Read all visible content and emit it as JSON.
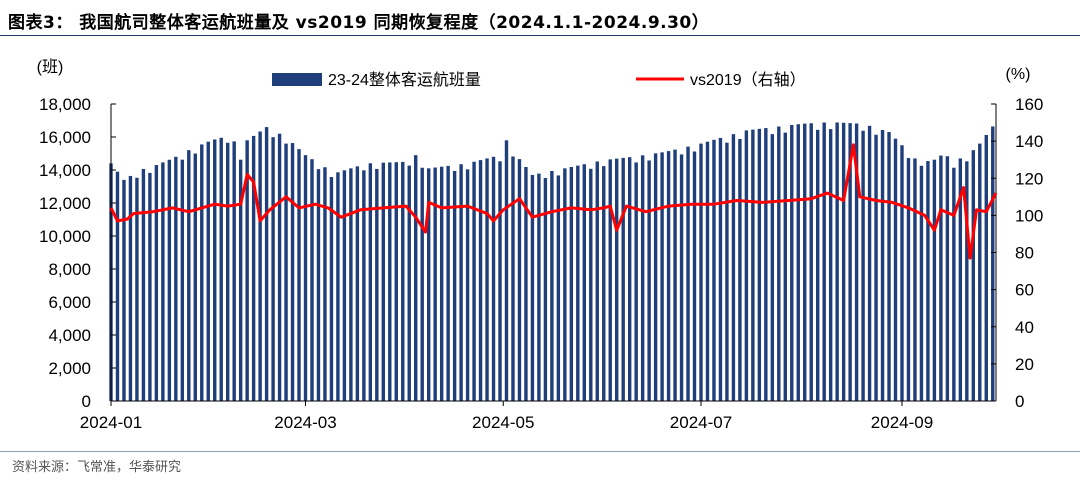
{
  "figure": {
    "title": "图表3：  我国航司整体客运航班量及 vs2019 同期恢复程度（2024.1.1-2024.9.30）",
    "source": "资料来源：飞常准，华泰研究"
  },
  "colors": {
    "bar": "#1f3e7a",
    "line": "#ff0000",
    "rule": "#1a3a6b"
  },
  "chart_data": {
    "type": "bar+line",
    "x_start": "2024-01-01",
    "x_end": "2024-09-30",
    "x_tick_labels": [
      "2024-01",
      "2024-03",
      "2024-05",
      "2024-07",
      "2024-09"
    ],
    "x_tick_dates": [
      "2024-01-01",
      "2024-03-01",
      "2024-05-01",
      "2024-07-01",
      "2024-09-01"
    ],
    "y_left": {
      "unit_label": "(班)",
      "range": [
        0,
        18000
      ],
      "ticks": [
        "0",
        "2,000",
        "4,000",
        "6,000",
        "8,000",
        "10,000",
        "12,000",
        "14,000",
        "16,000",
        "18,000"
      ]
    },
    "y_right": {
      "unit_label": "(%)",
      "range": [
        0,
        160
      ],
      "ticks": [
        "0",
        "20",
        "40",
        "60",
        "80",
        "100",
        "120",
        "140",
        "160"
      ]
    },
    "legend": {
      "placement": "top",
      "entries": [
        "23-24整体客运航班量",
        "vs2019（右轴）"
      ]
    },
    "series": [
      {
        "name": "23-24整体客运航班量",
        "kind": "bar",
        "axis": "left",
        "anchors": [
          [
            "2024-01-01",
            14400
          ],
          [
            "2024-01-05",
            13400
          ],
          [
            "2024-01-10",
            14000
          ],
          [
            "2024-01-15",
            14300
          ],
          [
            "2024-01-20",
            14700
          ],
          [
            "2024-01-26",
            15300
          ],
          [
            "2024-02-01",
            15800
          ],
          [
            "2024-02-07",
            16100
          ],
          [
            "2024-02-10",
            15000
          ],
          [
            "2024-02-12",
            15800
          ],
          [
            "2024-02-18",
            16600
          ],
          [
            "2024-02-24",
            16000
          ],
          [
            "2024-03-01",
            14900
          ],
          [
            "2024-03-10",
            13800
          ],
          [
            "2024-03-20",
            14400
          ],
          [
            "2024-04-01",
            14500
          ],
          [
            "2024-04-04",
            14900
          ],
          [
            "2024-04-08",
            14100
          ],
          [
            "2024-04-20",
            14400
          ],
          [
            "2024-04-30",
            14900
          ],
          [
            "2024-05-01",
            16100
          ],
          [
            "2024-05-05",
            14900
          ],
          [
            "2024-05-10",
            13700
          ],
          [
            "2024-05-20",
            14100
          ],
          [
            "2024-06-01",
            14600
          ],
          [
            "2024-06-10",
            14800
          ],
          [
            "2024-06-20",
            15100
          ],
          [
            "2024-07-01",
            15600
          ],
          [
            "2024-07-15",
            16400
          ],
          [
            "2024-08-01",
            16800
          ],
          [
            "2024-08-10",
            16900
          ],
          [
            "2024-08-20",
            16800
          ],
          [
            "2024-08-28",
            16300
          ],
          [
            "2024-09-05",
            14700
          ],
          [
            "2024-09-10",
            14500
          ],
          [
            "2024-09-14",
            15000
          ],
          [
            "2024-09-17",
            14500
          ],
          [
            "2024-09-22",
            15000
          ],
          [
            "2024-09-25",
            15600
          ],
          [
            "2024-09-30",
            16900
          ]
        ]
      },
      {
        "name": "vs2019（右轴）",
        "kind": "line",
        "axis": "right",
        "points": [
          [
            "2024-01-01",
            104
          ],
          [
            "2024-01-03",
            97
          ],
          [
            "2024-01-06",
            98
          ],
          [
            "2024-01-08",
            101
          ],
          [
            "2024-01-14",
            102
          ],
          [
            "2024-01-20",
            104
          ],
          [
            "2024-01-25",
            102
          ],
          [
            "2024-01-29",
            104
          ],
          [
            "2024-02-02",
            106
          ],
          [
            "2024-02-06",
            105
          ],
          [
            "2024-02-10",
            106
          ],
          [
            "2024-02-12",
            122
          ],
          [
            "2024-02-14",
            118
          ],
          [
            "2024-02-16",
            97
          ],
          [
            "2024-02-19",
            103
          ],
          [
            "2024-02-24",
            110
          ],
          [
            "2024-02-28",
            104
          ],
          [
            "2024-03-04",
            106
          ],
          [
            "2024-03-08",
            104
          ],
          [
            "2024-03-12",
            99
          ],
          [
            "2024-03-18",
            103
          ],
          [
            "2024-03-25",
            104
          ],
          [
            "2024-04-01",
            105
          ],
          [
            "2024-04-04",
            99
          ],
          [
            "2024-04-07",
            91
          ],
          [
            "2024-04-08",
            107
          ],
          [
            "2024-04-12",
            104
          ],
          [
            "2024-04-20",
            105
          ],
          [
            "2024-04-26",
            101
          ],
          [
            "2024-04-28",
            97
          ],
          [
            "2024-05-01",
            103
          ],
          [
            "2024-05-06",
            109
          ],
          [
            "2024-05-10",
            99
          ],
          [
            "2024-05-16",
            102
          ],
          [
            "2024-05-22",
            104
          ],
          [
            "2024-05-28",
            103
          ],
          [
            "2024-06-01",
            104
          ],
          [
            "2024-06-03",
            105
          ],
          [
            "2024-06-05",
            92
          ],
          [
            "2024-06-08",
            105
          ],
          [
            "2024-06-14",
            102
          ],
          [
            "2024-06-21",
            105
          ],
          [
            "2024-06-28",
            106
          ],
          [
            "2024-07-05",
            106
          ],
          [
            "2024-07-12",
            108
          ],
          [
            "2024-07-20",
            107
          ],
          [
            "2024-07-28",
            108
          ],
          [
            "2024-08-04",
            109
          ],
          [
            "2024-08-09",
            112
          ],
          [
            "2024-08-14",
            108
          ],
          [
            "2024-08-17",
            138
          ],
          [
            "2024-08-19",
            110
          ],
          [
            "2024-08-24",
            108
          ],
          [
            "2024-08-29",
            107
          ],
          [
            "2024-09-03",
            104
          ],
          [
            "2024-09-08",
            100
          ],
          [
            "2024-09-11",
            92
          ],
          [
            "2024-09-13",
            103
          ],
          [
            "2024-09-17",
            100
          ],
          [
            "2024-09-20",
            115
          ],
          [
            "2024-09-22",
            77
          ],
          [
            "2024-09-24",
            103
          ],
          [
            "2024-09-27",
            102
          ],
          [
            "2024-09-30",
            112
          ]
        ]
      }
    ]
  }
}
